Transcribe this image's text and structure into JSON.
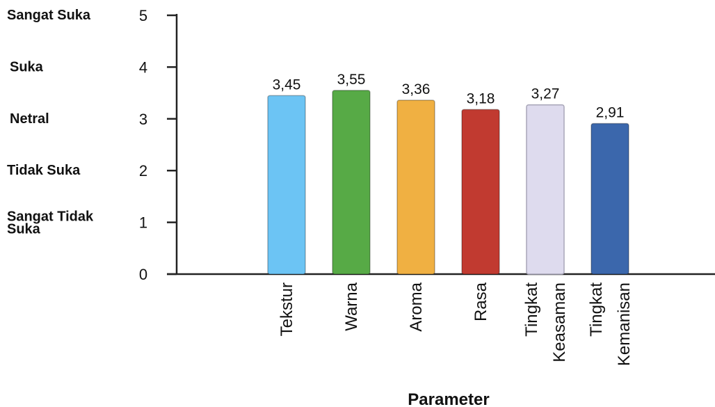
{
  "chart_data": {
    "type": "bar",
    "categories": [
      [
        "Tekstur"
      ],
      [
        "Warna"
      ],
      [
        "Aroma"
      ],
      [
        "Rasa"
      ],
      [
        "Tingkat",
        "Keasaman"
      ],
      [
        "Tingkat",
        "Kemanisan"
      ]
    ],
    "values": [
      3.45,
      3.55,
      3.36,
      3.18,
      3.27,
      2.91
    ],
    "value_labels": [
      "3,45",
      "3,55",
      "3,36",
      "3,18",
      "3,27",
      "2,91"
    ],
    "colors": [
      "#6cc4f4",
      "#57aa46",
      "#f0b042",
      "#c13a30",
      "#dedbee",
      "#3b67ac"
    ],
    "ylim": [
      0,
      5
    ],
    "yticks": [
      "0",
      "1",
      "2",
      "3",
      "4",
      "5"
    ],
    "scale_labels": [
      {
        "value": 5,
        "lines": [
          "Sangat Suka"
        ]
      },
      {
        "value": 4,
        "lines": [
          "Suka"
        ]
      },
      {
        "value": 3,
        "lines": [
          "Netral"
        ]
      },
      {
        "value": 2,
        "lines": [
          "Tidak Suka"
        ]
      },
      {
        "value": 1,
        "lines": [
          "Sangat Tidak",
          "Suka"
        ]
      }
    ],
    "xlabel": "Parameter",
    "ylabel": "",
    "title": "",
    "grid": false
  }
}
